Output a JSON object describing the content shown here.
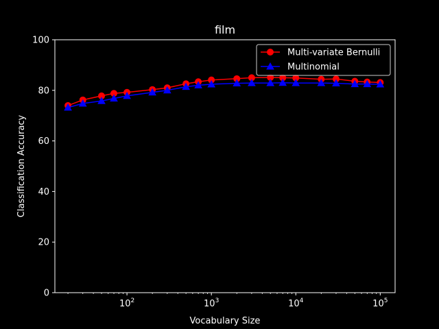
{
  "chart_data": {
    "type": "line",
    "title": "film",
    "xlabel": "Vocabulary Size",
    "ylabel": "Classification Accuracy",
    "xscale": "log",
    "xlim": [
      14,
      150000
    ],
    "ylim": [
      0,
      100
    ],
    "xticks": [
      {
        "value": 100,
        "base": "10",
        "exp": "2"
      },
      {
        "value": 1000,
        "base": "10",
        "exp": "3"
      },
      {
        "value": 10000,
        "base": "10",
        "exp": "4"
      },
      {
        "value": 100000,
        "base": "10",
        "exp": "5"
      }
    ],
    "yticks": [
      0,
      20,
      40,
      60,
      80,
      100
    ],
    "grid": false,
    "legend_position": "upper right",
    "background": "#000000",
    "x": [
      20,
      30,
      50,
      70,
      100,
      200,
      300,
      500,
      700,
      1000,
      2000,
      3000,
      5000,
      7000,
      10000,
      20000,
      30000,
      50000,
      70000,
      100000
    ],
    "series": [
      {
        "name": "Multi-variate Bernulli",
        "color": "#ff0000",
        "marker": "circle",
        "values": [
          74.0,
          76.2,
          77.8,
          78.8,
          79.2,
          80.3,
          81.0,
          82.6,
          83.4,
          84.1,
          84.6,
          85.0,
          85.1,
          85.0,
          84.9,
          84.4,
          84.5,
          83.6,
          83.3,
          83.1
        ]
      },
      {
        "name": "Multinomial",
        "color": "#0000ff",
        "marker": "triangle",
        "values": [
          73.2,
          74.8,
          75.8,
          76.8,
          77.8,
          79.2,
          80.0,
          81.4,
          82.0,
          82.4,
          82.8,
          82.9,
          82.9,
          83.0,
          82.9,
          82.9,
          82.8,
          82.5,
          82.5,
          82.4
        ]
      }
    ]
  }
}
